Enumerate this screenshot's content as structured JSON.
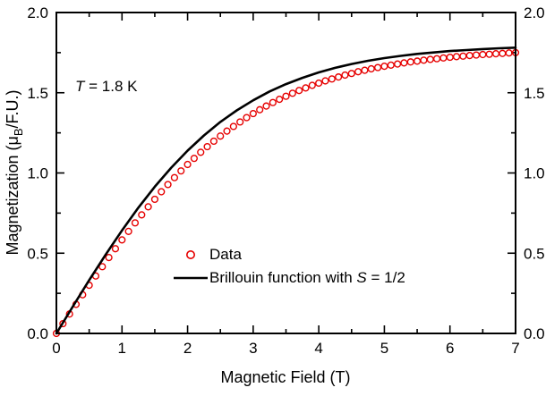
{
  "chart_data": {
    "type": "scatter",
    "title": "",
    "xlabel": "Magnetic Field (T)",
    "ylabel": "Magnetization (μB/F.U.)",
    "ylabel_parts": {
      "pre": "Magnetization (μ",
      "sub": "B",
      "post": "/F.U.)"
    },
    "xlim": [
      0,
      7
    ],
    "ylim": [
      0,
      2
    ],
    "xticks": [
      0,
      1,
      2,
      3,
      4,
      5,
      6,
      7
    ],
    "xtick_labels": [
      "0",
      "1",
      "2",
      "3",
      "4",
      "5",
      "6",
      "7"
    ],
    "xminor": [
      0.5,
      1.5,
      2.5,
      3.5,
      4.5,
      5.5,
      6.5
    ],
    "yticks": [
      0,
      0.5,
      1,
      1.5,
      2
    ],
    "ytick_labels": [
      "0.0",
      "0.5",
      "1.0",
      "1.5",
      "2.0"
    ],
    "yminor": [
      0.25,
      0.75,
      1.25,
      1.75
    ],
    "grid": false,
    "mirrored_axes": true,
    "legend_position": "inside lower-center",
    "annotation": {
      "italic": "T",
      "rest": " = 1.8 K"
    },
    "series": [
      {
        "name": "Data",
        "plot": "scatter",
        "marker": "open-circle",
        "color": "#e60000",
        "x": [
          0,
          0.1,
          0.2,
          0.3,
          0.4,
          0.5,
          0.6,
          0.7,
          0.8,
          0.9,
          1,
          1.1,
          1.2,
          1.3,
          1.4,
          1.5,
          1.6,
          1.7,
          1.8,
          1.9,
          2,
          2.1,
          2.2,
          2.3,
          2.4,
          2.5,
          2.6,
          2.7,
          2.8,
          2.9,
          3,
          3.1,
          3.2,
          3.3,
          3.4,
          3.5,
          3.6,
          3.7,
          3.8,
          3.9,
          4,
          4.1,
          4.2,
          4.3,
          4.4,
          4.5,
          4.6,
          4.7,
          4.8,
          4.9,
          5,
          5.1,
          5.2,
          5.3,
          5.4,
          5.5,
          5.6,
          5.7,
          5.8,
          5.9,
          6,
          6.1,
          6.2,
          6.3,
          6.4,
          6.5,
          6.6,
          6.7,
          6.8,
          6.9,
          7
        ],
        "y": [
          0.0,
          0.061,
          0.121,
          0.181,
          0.241,
          0.3,
          0.358,
          0.416,
          0.473,
          0.528,
          0.583,
          0.636,
          0.689,
          0.739,
          0.789,
          0.836,
          0.883,
          0.928,
          0.971,
          1.013,
          1.053,
          1.091,
          1.129,
          1.164,
          1.198,
          1.23,
          1.261,
          1.29,
          1.318,
          1.345,
          1.37,
          1.394,
          1.417,
          1.439,
          1.459,
          1.478,
          1.497,
          1.514,
          1.53,
          1.546,
          1.56,
          1.574,
          1.586,
          1.598,
          1.61,
          1.62,
          1.631,
          1.64,
          1.649,
          1.657,
          1.665,
          1.672,
          1.679,
          1.686,
          1.692,
          1.697,
          1.703,
          1.708,
          1.712,
          1.717,
          1.721,
          1.725,
          1.728,
          1.732,
          1.735,
          1.738,
          1.74,
          1.743,
          1.745,
          1.748,
          1.75
        ]
      },
      {
        "name": "Brillouin function with S = 1/2",
        "name_parts": {
          "pre": "Brillouin function with ",
          "italic": "S",
          "post": " = 1/2"
        },
        "plot": "line",
        "color": "#000000",
        "x": [
          0,
          0.25,
          0.5,
          0.75,
          1,
          1.25,
          1.5,
          1.75,
          2,
          2.25,
          2.5,
          2.75,
          3,
          3.25,
          3.5,
          3.75,
          4,
          4.25,
          4.5,
          4.75,
          5,
          5.25,
          5.5,
          5.75,
          6,
          6.25,
          6.5,
          6.75,
          7
        ],
        "y": [
          0.0,
          0.167,
          0.332,
          0.491,
          0.642,
          0.784,
          0.914,
          1.033,
          1.139,
          1.234,
          1.318,
          1.39,
          1.453,
          1.508,
          1.554,
          1.593,
          1.627,
          1.655,
          1.679,
          1.699,
          1.716,
          1.73,
          1.742,
          1.751,
          1.76,
          1.766,
          1.772,
          1.777,
          1.781
        ]
      }
    ]
  }
}
